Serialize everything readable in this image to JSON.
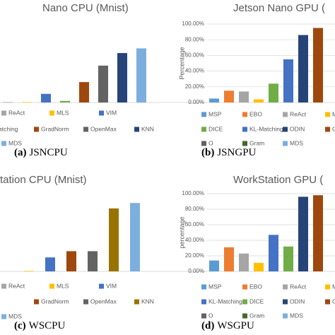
{
  "chart_data": [
    {
      "type": "bar",
      "title": "Nano CPU (Mnist)",
      "caption": {
        "tag": "(a)",
        "text": "JSNCPU"
      },
      "ylim": [
        0,
        100
      ],
      "series": [
        {
          "name": "ReAct",
          "color": "#a5a5a5",
          "values": [
            0.5
          ]
        },
        {
          "name": "MLS",
          "color": "#ffc000",
          "values": [
            0.5
          ]
        },
        {
          "name": "VIM",
          "color": "#4472c4",
          "values": [
            11
          ]
        },
        {
          "name": "atching",
          "color": "#70ad47",
          "values": [
            2
          ]
        },
        {
          "name": "GradNorm",
          "color": "#9e480e",
          "values": [
            26
          ]
        },
        {
          "name": "OpenMax",
          "color": "#636363",
          "values": [
            47
          ]
        },
        {
          "name": "KNN",
          "color": "#264478",
          "values": [
            63
          ]
        },
        {
          "name": "MDS",
          "color": "#7cafdd",
          "values": [
            69
          ]
        }
      ]
    },
    {
      "type": "bar",
      "title": "Jetson Nano GPU (",
      "caption": {
        "tag": "(b)",
        "text": "JSNGPU"
      },
      "ylabel": "Percentage",
      "ylim": [
        0,
        100
      ],
      "yticks": [
        {
          "value": 0,
          "label": "0.00%"
        },
        {
          "value": 20,
          "label": "20.00%"
        },
        {
          "value": 40,
          "label": "40.00%"
        },
        {
          "value": 60,
          "label": "60.00%"
        },
        {
          "value": 80,
          "label": "80.00%"
        },
        {
          "value": 100,
          "label": "100.00%"
        }
      ],
      "series": [
        {
          "name": "MSP",
          "color": "#5b9bd5",
          "values": [
            5
          ]
        },
        {
          "name": "EBO",
          "color": "#ed7d31",
          "values": [
            15
          ]
        },
        {
          "name": "ReAct",
          "color": "#a5a5a5",
          "values": [
            14
          ]
        },
        {
          "name": "M",
          "color": "#ffc000",
          "values": [
            4
          ]
        },
        {
          "name": "DICE",
          "color": "#70ad47",
          "values": [
            24
          ]
        },
        {
          "name": "KL-Matching",
          "color": "#4472c4",
          "values": [
            55
          ]
        },
        {
          "name": "ODIN",
          "color": "#264478",
          "values": [
            86
          ]
        },
        {
          "name": "GradNorm",
          "color": "#9e480e",
          "values": [
            95
          ]
        },
        {
          "name": "O",
          "color": "#636363",
          "values": [
            null
          ]
        },
        {
          "name": "Gram",
          "color": "#43682b",
          "values": [
            null
          ]
        },
        {
          "name": "MDS",
          "color": "#7cafdd",
          "values": [
            null
          ]
        }
      ]
    },
    {
      "type": "bar",
      "title": "tation CPU (Mnist)",
      "caption": {
        "tag": "(c)",
        "text": "WSCPU"
      },
      "ylim": [
        0,
        100
      ],
      "series": [
        {
          "name": "ReAct",
          "color": "#a5a5a5",
          "values": [
            null
          ]
        },
        {
          "name": "MLS",
          "color": "#ffc000",
          "values": [
            0.5
          ]
        },
        {
          "name": "VIM",
          "color": "#4472c4",
          "values": [
            18
          ]
        },
        {
          "name": "GradNorm",
          "color": "#9e480e",
          "values": [
            26
          ]
        },
        {
          "name": "OpenMax",
          "color": "#636363",
          "values": [
            26
          ]
        },
        {
          "name": "KNN",
          "color": "#997300",
          "values": [
            81
          ]
        },
        {
          "name": "MDS",
          "color": "#7cafdd",
          "values": [
            88
          ]
        }
      ]
    },
    {
      "type": "bar",
      "title": "WorkStation GPU (",
      "caption": {
        "tag": "(d)",
        "text": "WSGPU"
      },
      "ylabel": "percentage",
      "ylim": [
        0,
        100
      ],
      "yticks": [
        {
          "value": 0,
          "label": "0.00%"
        },
        {
          "value": 20,
          "label": "20.00%"
        },
        {
          "value": 40,
          "label": "40.00%"
        },
        {
          "value": 60,
          "label": "60.00%"
        },
        {
          "value": 80,
          "label": "80.00%"
        },
        {
          "value": 100,
          "label": "100.00%"
        }
      ],
      "series": [
        {
          "name": "MSP",
          "color": "#5b9bd5",
          "values": [
            14
          ]
        },
        {
          "name": "EBO",
          "color": "#ed7d31",
          "values": [
            31
          ]
        },
        {
          "name": "ReAct",
          "color": "#a5a5a5",
          "values": [
            23
          ]
        },
        {
          "name": "M",
          "color": "#ffc000",
          "values": [
            11
          ]
        },
        {
          "name": "KL-Matching",
          "color": "#4472c4",
          "values": [
            47
          ]
        },
        {
          "name": "DICE",
          "color": "#70ad47",
          "values": [
            32
          ]
        },
        {
          "name": "ODIN",
          "color": "#264478",
          "values": [
            96
          ]
        },
        {
          "name": "GradNorm",
          "color": "#9e480e",
          "values": [
            98
          ]
        },
        {
          "name": "O",
          "color": "#636363",
          "values": [
            null
          ]
        },
        {
          "name": "Gram",
          "color": "#43682b",
          "values": [
            null
          ]
        },
        {
          "name": "MDS",
          "color": "#7cafdd",
          "values": [
            null
          ]
        }
      ]
    }
  ]
}
